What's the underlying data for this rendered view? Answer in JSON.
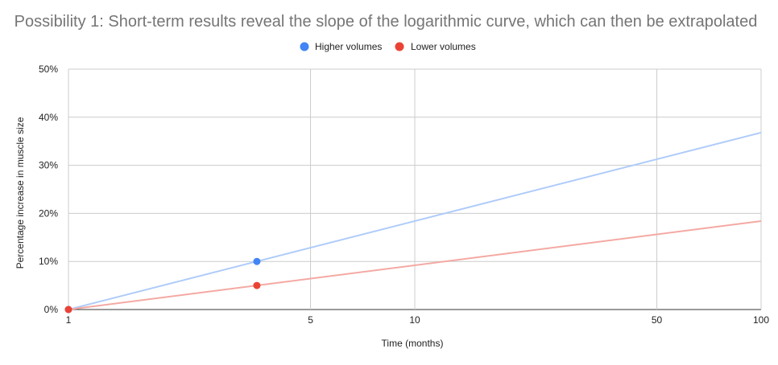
{
  "chart_data": {
    "type": "line",
    "title": "Possibility 1: Short-term results reveal the slope of the logarithmic curve, which can then be extrapolated",
    "xlabel": "Time (months)",
    "ylabel": "Percentage increase in muscle size",
    "x_scale": "log",
    "xlim": [
      1,
      100
    ],
    "ylim": [
      0,
      50
    ],
    "x_ticks": [
      1,
      5,
      10,
      50,
      100
    ],
    "x_tick_labels": [
      "1",
      "5",
      "10",
      "50",
      "100"
    ],
    "y_ticks": [
      0,
      10,
      20,
      30,
      40,
      50
    ],
    "y_tick_labels": [
      "0%",
      "10%",
      "20%",
      "30%",
      "40%",
      "50%"
    ],
    "grid": true,
    "legend_position": "top",
    "series": [
      {
        "name": "Higher volumes",
        "color": "#4285f4",
        "trend_color": "#aecbfa",
        "points": [
          {
            "x": 1,
            "y": 0
          },
          {
            "x": 3.5,
            "y": 10
          }
        ],
        "trendline": [
          {
            "x": 1,
            "y": 0
          },
          {
            "x": 100,
            "y": 36.8
          }
        ]
      },
      {
        "name": "Lower volumes",
        "color": "#ea4335",
        "trend_color": "#f4a9a3",
        "points": [
          {
            "x": 1,
            "y": 0
          },
          {
            "x": 3.5,
            "y": 5
          }
        ],
        "trendline": [
          {
            "x": 1,
            "y": 0
          },
          {
            "x": 100,
            "y": 18.4
          }
        ]
      }
    ]
  }
}
